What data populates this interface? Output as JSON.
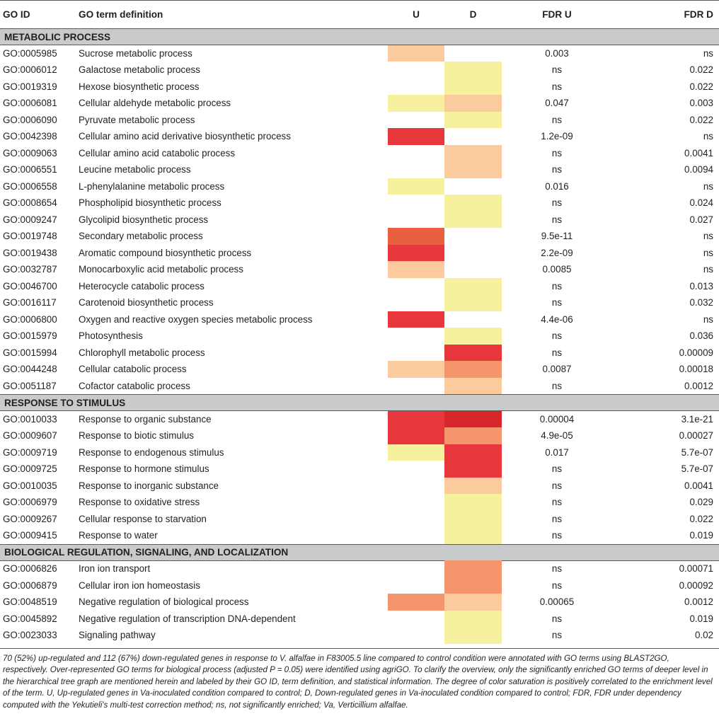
{
  "colors": {
    "none": "transparent",
    "pale_yellow": "#f6f19f",
    "peach": "#fbcb9e",
    "orange": "#f4956b",
    "red_orange": "#e8603f",
    "red": "#e8363d",
    "dark_red": "#d6262a"
  },
  "header": {
    "go_id": "GO ID",
    "definition": "GO term definition",
    "u": "U",
    "d": "D",
    "fdr_u": "FDR U",
    "fdr_d": "FDR D"
  },
  "sections": [
    {
      "title": "METABOLIC PROCESS",
      "rows": [
        {
          "id": "GO:0005985",
          "def": "Sucrose metabolic process",
          "u": "peach",
          "d": "none",
          "fdr_u": "0.003",
          "fdr_d": "ns"
        },
        {
          "id": "GO:0006012",
          "def": "Galactose metabolic process",
          "u": "none",
          "d": "pale_yellow",
          "fdr_u": "ns",
          "fdr_d": "0.022"
        },
        {
          "id": "GO:0019319",
          "def": "Hexose biosynthetic process",
          "u": "none",
          "d": "pale_yellow",
          "fdr_u": "ns",
          "fdr_d": "0.022"
        },
        {
          "id": "GO:0006081",
          "def": "Cellular aldehyde metabolic process",
          "u": "pale_yellow",
          "d": "peach",
          "fdr_u": "0.047",
          "fdr_d": "0.003"
        },
        {
          "id": "GO:0006090",
          "def": "Pyruvate metabolic process",
          "u": "none",
          "d": "pale_yellow",
          "fdr_u": "ns",
          "fdr_d": "0.022"
        },
        {
          "id": "GO:0042398",
          "def": "Cellular amino acid derivative biosynthetic process",
          "u": "red",
          "d": "none",
          "fdr_u": "1.2e-09",
          "fdr_d": "ns"
        },
        {
          "id": "GO:0009063",
          "def": "Cellular amino acid catabolic process",
          "u": "none",
          "d": "peach",
          "fdr_u": "ns",
          "fdr_d": "0.0041"
        },
        {
          "id": "GO:0006551",
          "def": "Leucine metabolic process",
          "u": "none",
          "d": "peach",
          "fdr_u": "ns",
          "fdr_d": "0.0094"
        },
        {
          "id": "GO:0006558",
          "def": "L-phenylalanine metabolic process",
          "u": "pale_yellow",
          "d": "none",
          "fdr_u": "0.016",
          "fdr_d": "ns"
        },
        {
          "id": "GO:0008654",
          "def": "Phospholipid biosynthetic process",
          "u": "none",
          "d": "pale_yellow",
          "fdr_u": "ns",
          "fdr_d": "0.024"
        },
        {
          "id": "GO:0009247",
          "def": "Glycolipid biosynthetic process",
          "u": "none",
          "d": "pale_yellow",
          "fdr_u": "ns",
          "fdr_d": "0.027"
        },
        {
          "id": "GO:0019748",
          "def": "Secondary metabolic process",
          "u": "red_orange",
          "d": "none",
          "fdr_u": "9.5e-11",
          "fdr_d": "ns"
        },
        {
          "id": "GO:0019438",
          "def": "Aromatic compound biosynthetic process",
          "u": "red",
          "d": "none",
          "fdr_u": "2.2e-09",
          "fdr_d": "ns"
        },
        {
          "id": "GO:0032787",
          "def": "Monocarboxylic acid metabolic process",
          "u": "peach",
          "d": "none",
          "fdr_u": "0.0085",
          "fdr_d": "ns"
        },
        {
          "id": "GO:0046700",
          "def": "Heterocycle catabolic process",
          "u": "none",
          "d": "pale_yellow",
          "fdr_u": "ns",
          "fdr_d": "0.013"
        },
        {
          "id": "GO:0016117",
          "def": "Carotenoid biosynthetic process",
          "u": "none",
          "d": "pale_yellow",
          "fdr_u": "ns",
          "fdr_d": "0.032"
        },
        {
          "id": "GO:0006800",
          "def": "Oxygen and reactive oxygen species metabolic process",
          "u": "red",
          "d": "none",
          "fdr_u": "4.4e-06",
          "fdr_d": "ns"
        },
        {
          "id": "GO:0015979",
          "def": "Photosynthesis",
          "u": "none",
          "d": "pale_yellow",
          "fdr_u": "ns",
          "fdr_d": "0.036"
        },
        {
          "id": "GO:0015994",
          "def": "Chlorophyll metabolic process",
          "u": "none",
          "d": "red",
          "fdr_u": "ns",
          "fdr_d": "0.00009"
        },
        {
          "id": "GO:0044248",
          "def": "Cellular catabolic process",
          "u": "peach",
          "d": "orange",
          "fdr_u": "0.0087",
          "fdr_d": "0.00018"
        },
        {
          "id": "GO:0051187",
          "def": "Cofactor catabolic process",
          "u": "none",
          "d": "peach",
          "fdr_u": "ns",
          "fdr_d": "0.0012"
        }
      ]
    },
    {
      "title": "RESPONSE TO STIMULUS",
      "rows": [
        {
          "id": "GO:0010033",
          "def": "Response to organic substance",
          "u": "red",
          "d": "dark_red",
          "fdr_u": "0.00004",
          "fdr_d": "3.1e-21"
        },
        {
          "id": "GO:0009607",
          "def": "Response to biotic stimulus",
          "u": "red",
          "d": "orange",
          "fdr_u": "4.9e-05",
          "fdr_d": "0.00027"
        },
        {
          "id": "GO:0009719",
          "def": "Response to endogenous stimulus",
          "u": "pale_yellow",
          "d": "red",
          "fdr_u": "0.017",
          "fdr_d": "5.7e-07"
        },
        {
          "id": "GO:0009725",
          "def": "Response to hormone stimulus",
          "u": "none",
          "d": "red",
          "fdr_u": "ns",
          "fdr_d": "5.7e-07"
        },
        {
          "id": "GO:0010035",
          "def": "Response to inorganic substance",
          "u": "none",
          "d": "peach",
          "fdr_u": "ns",
          "fdr_d": "0.0041"
        },
        {
          "id": "GO:0006979",
          "def": "Response to oxidative stress",
          "u": "none",
          "d": "pale_yellow",
          "fdr_u": "ns",
          "fdr_d": "0.029"
        },
        {
          "id": "GO:0009267",
          "def": "Cellular response to starvation",
          "u": "none",
          "d": "pale_yellow",
          "fdr_u": "ns",
          "fdr_d": "0.022"
        },
        {
          "id": "GO:0009415",
          "def": "Response to water",
          "u": "none",
          "d": "pale_yellow",
          "fdr_u": "ns",
          "fdr_d": "0.019"
        }
      ]
    },
    {
      "title": "BIOLOGICAL REGULATION, SIGNALING, AND LOCALIZATION",
      "rows": [
        {
          "id": "GO:0006826",
          "def": "Iron ion transport",
          "u": "none",
          "d": "orange",
          "fdr_u": "ns",
          "fdr_d": "0.00071"
        },
        {
          "id": "GO:0006879",
          "def": "Cellular iron ion homeostasis",
          "u": "none",
          "d": "orange",
          "fdr_u": "ns",
          "fdr_d": "0.00092"
        },
        {
          "id": "GO:0048519",
          "def": "Negative regulation of biological process",
          "u": "orange",
          "d": "peach",
          "fdr_u": "0.00065",
          "fdr_d": "0.0012"
        },
        {
          "id": "GO:0045892",
          "def": "Negative regulation of transcription DNA-dependent",
          "u": "none",
          "d": "pale_yellow",
          "fdr_u": "ns",
          "fdr_d": "0.019"
        },
        {
          "id": "GO:0023033",
          "def": "Signaling pathway",
          "u": "none",
          "d": "pale_yellow",
          "fdr_u": "ns",
          "fdr_d": "0.02"
        }
      ]
    }
  ],
  "caption": "70 (52%) up-regulated and 112 (67%) down-regulated genes in response to V. alfalfae in F83005.5 line compared to control condition were annotated with GO terms using BLAST2GO, respectively. Over-represented GO terms for biological process (adjusted P = 0.05) were identified using agriGO. To clarify the overview, only the significantly enriched GO terms of deeper level in the hierarchical tree graph are mentioned herein and labeled by their GO ID, term definition, and statistical information. The degree of color saturation is positively correlated to the enrichment level of the term. U, Up-regulated genes in Va-inoculated condition compared to control; D, Down-regulated genes in Va-inoculated condition compared to control; FDR, FDR under dependency computed with the Yekutieli's multi-test correction method; ns, not significantly enriched; Va, Verticillium alfalfae."
}
